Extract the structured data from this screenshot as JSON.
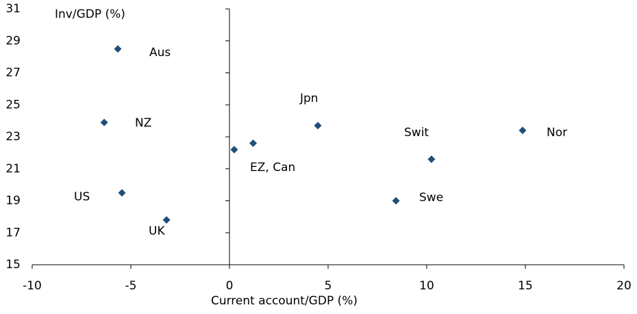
{
  "chart_data": {
    "type": "scatter",
    "y_label": "Inv/GDP (%)",
    "x_label": "Current account/GDP (%)",
    "series": [
      {
        "color": "#1f4e79",
        "x": [
          -5.66,
          -6.35,
          -5.45,
          -3.19,
          0.24,
          1.2,
          4.48,
          10.24,
          8.44,
          14.86
        ],
        "values": [
          28.5,
          23.9,
          19.5,
          17.8,
          22.2,
          22.6,
          23.7,
          21.6,
          19.0,
          23.4
        ]
      }
    ],
    "annotations": [
      "Aus",
      "NZ",
      "US",
      "UK",
      "EZ, Can",
      "Jpn",
      "Swit",
      "Swe",
      "Nor"
    ],
    "xlim": [
      -10,
      20
    ],
    "xticks": [
      -10,
      -5,
      0,
      5,
      10,
      15,
      20
    ],
    "ylim": [
      15,
      31
    ],
    "yticks": [
      15,
      17,
      19,
      21,
      23,
      25,
      27,
      29,
      31
    ]
  }
}
